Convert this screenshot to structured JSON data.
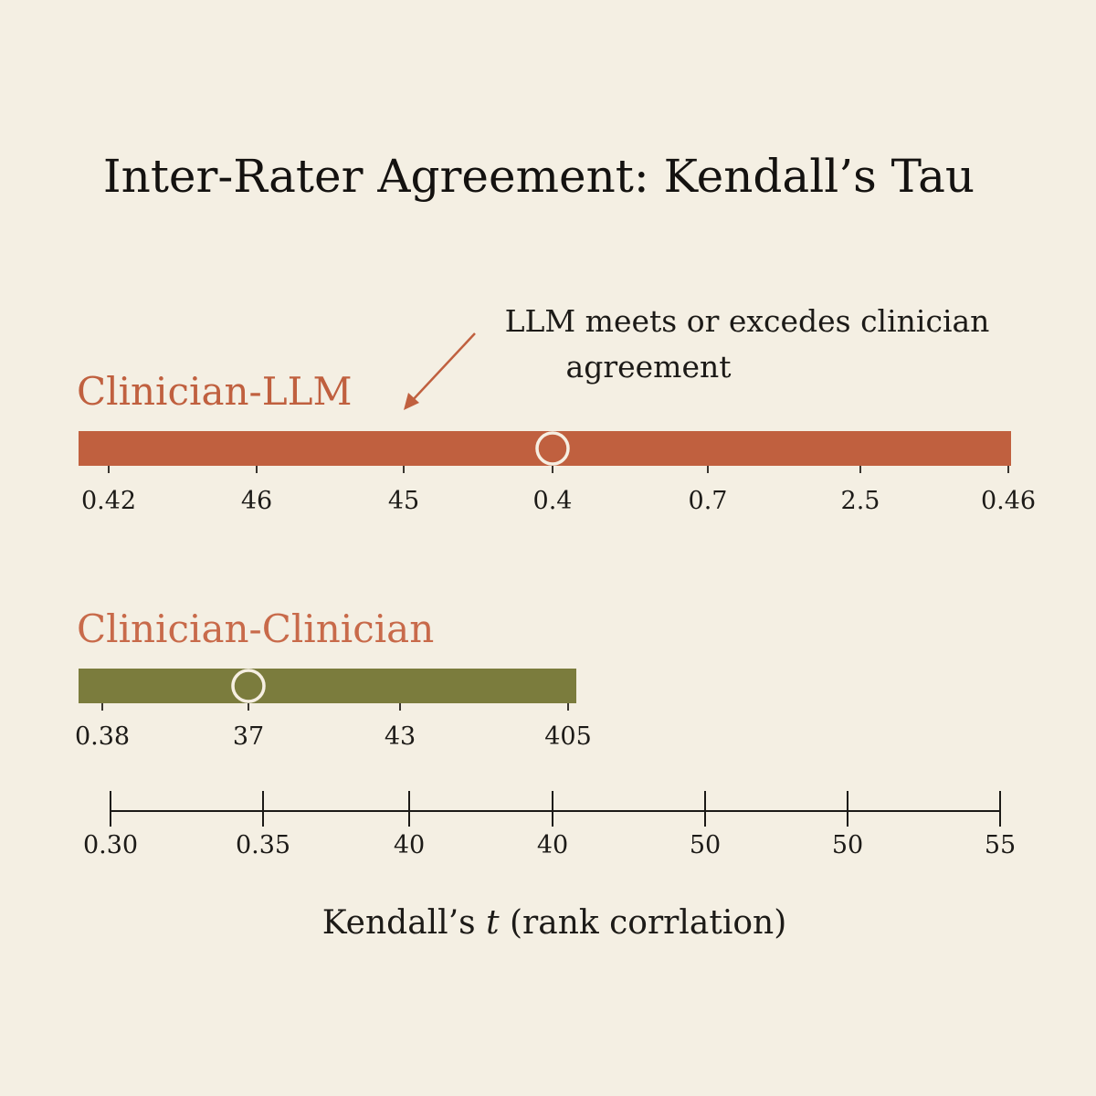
{
  "chart_data": {
    "type": "bar",
    "title": "Inter-Rater Agreement: Kendall’s Tau",
    "annotation": {
      "line1": "LLM meets or excedes clinician",
      "line2": "agreement"
    },
    "series": [
      {
        "name": "Clinician-LLM",
        "color": "#c0603f",
        "tick_labels": [
          "0.42",
          "46",
          "45",
          "0.4",
          "0.7",
          "2.5",
          "0.46"
        ],
        "marker_at_tick": 3
      },
      {
        "name": "Clinician-Clinician",
        "color": "#7b7c3d",
        "label_color": "#c86a4a",
        "tick_labels": [
          "0.38",
          "37",
          "43",
          "405"
        ],
        "marker_at_tick": 1
      }
    ],
    "x_axis": {
      "tick_labels": [
        "0.30",
        "0.35",
        "40",
        "40",
        "50",
        "50",
        "55"
      ],
      "label_prefix": "Kendall’s ",
      "label_symbol": "t",
      "label_suffix": " (rank corrlation)"
    },
    "grid": false,
    "legend": "none"
  }
}
